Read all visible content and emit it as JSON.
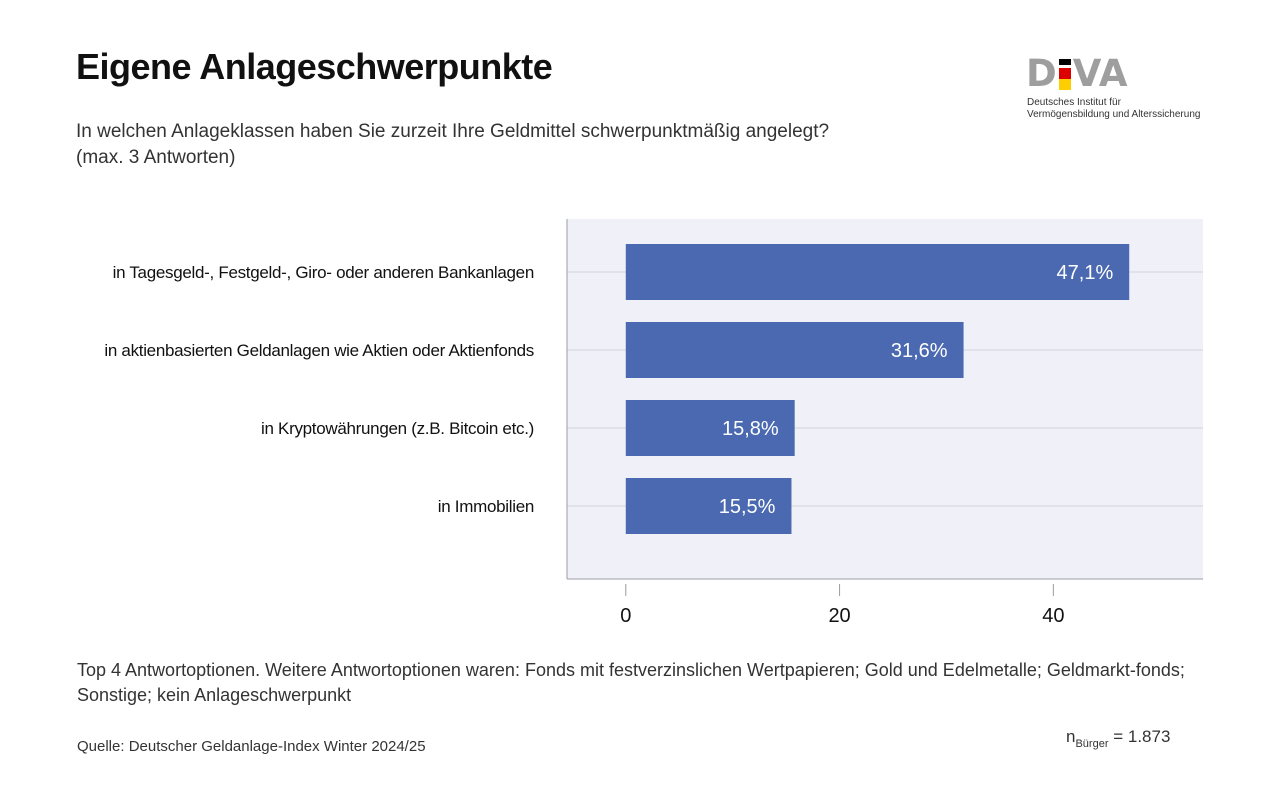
{
  "title": "Eigene Anlageschwerpunkte",
  "subtitle": "In welchen Anlageklassen haben Sie zurzeit Ihre Geldmittel schwerpunktmäßig angelegt? (max. 3 Antworten)",
  "logo": {
    "mark_left": "D",
    "mark_right": "VA",
    "line1": "Deutsches Institut für",
    "line2": "Vermögensbildung und Alterssicherung",
    "flag_colors": [
      "#000000",
      "#dd0000",
      "#ffce00"
    ]
  },
  "chart_data": {
    "type": "bar",
    "orientation": "horizontal",
    "categories": [
      "in Tagesgeld-, Festgeld-, Giro- oder anderen Bankanlagen",
      "in aktienbasierten Geldanlagen wie Aktien oder Aktienfonds",
      "in Kryptowährungen (z.B. Bitcoin etc.)",
      "in Immobilien"
    ],
    "values": [
      47.1,
      31.6,
      15.8,
      15.5
    ],
    "value_labels": [
      "47,1%",
      "31,6%",
      "15,8%",
      "15,5%"
    ],
    "xticks": [
      "0",
      "20",
      "40"
    ],
    "xlim": [
      -5.5,
      54
    ],
    "bar_color": "#4a69b0",
    "plot_background": "#f0f1f8",
    "grid": true
  },
  "footnote": "Top 4 Antwortoptionen. Weitere Antwortoptionen waren: Fonds mit festverzinslichen Wertpapieren; Gold und Edelmetalle; Geldmarkt-fonds; Sonstige; kein Anlageschwerpunkt",
  "source": "Quelle: Deutscher Geldanlage-Index Winter 2024/25",
  "sample": {
    "n": "n",
    "sub": "Bürger",
    "value": " = 1.873"
  }
}
